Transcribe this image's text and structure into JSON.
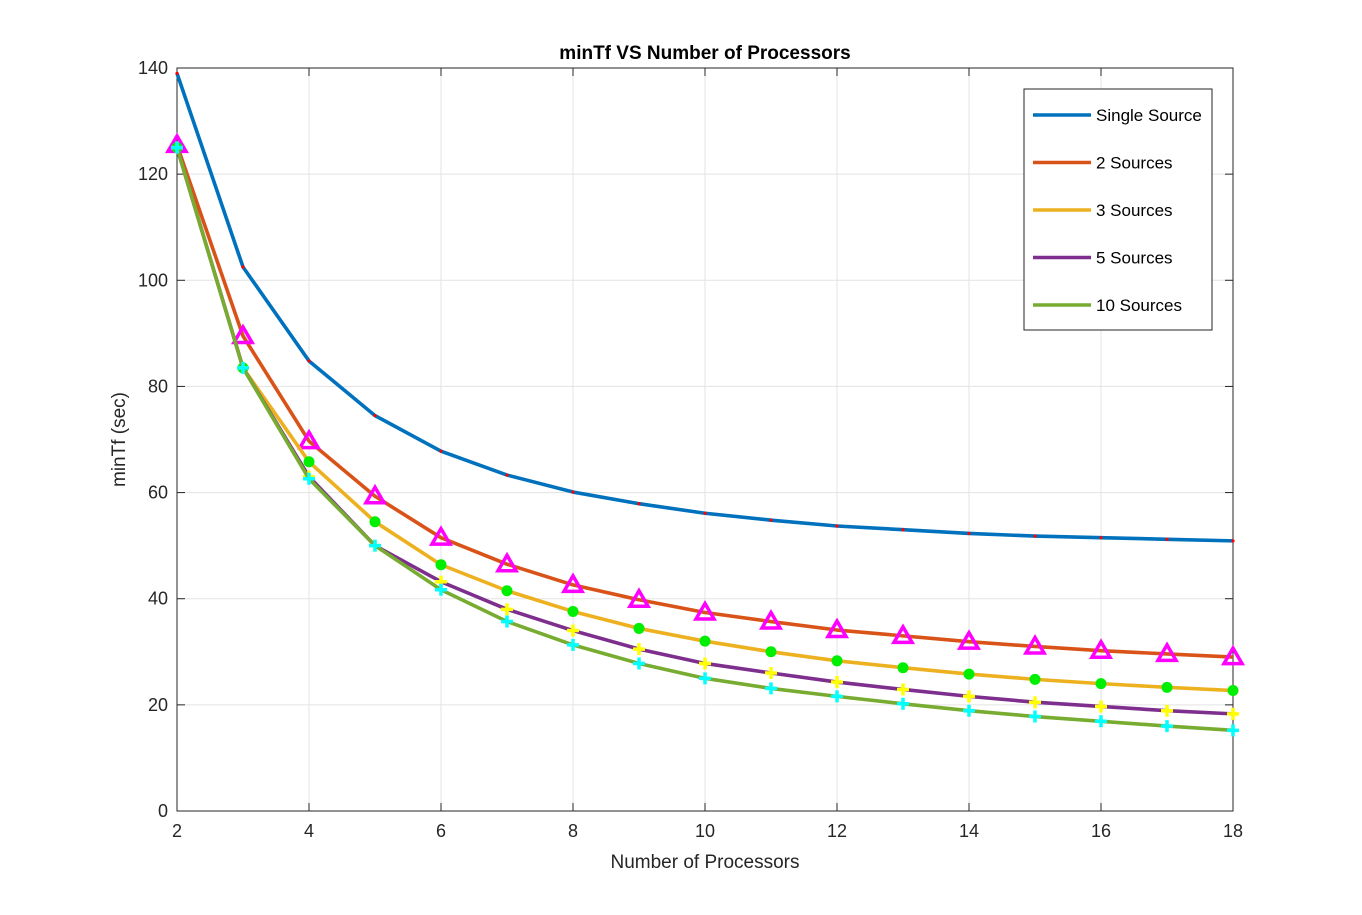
{
  "chart_data": {
    "type": "line",
    "title": "minTf VS Number of Processors",
    "xlabel": "Number of Processors",
    "ylabel": "minTf (sec)",
    "xlim": [
      2,
      18
    ],
    "ylim": [
      0,
      140
    ],
    "xticks": [
      "2",
      "4",
      "6",
      "8",
      "10",
      "12",
      "14",
      "16",
      "18"
    ],
    "yticks": [
      "0",
      "20",
      "40",
      "60",
      "80",
      "100",
      "120",
      "140"
    ],
    "grid": true,
    "legend_position": "top-right",
    "x": [
      2,
      3,
      4,
      5,
      6,
      7,
      8,
      9,
      10,
      11,
      12,
      13,
      14,
      15,
      16,
      17,
      18
    ],
    "series": [
      {
        "name": "Single Source",
        "color": "#0072BD",
        "marker": "dot",
        "marker_color": "#ff0000",
        "values": [
          139,
          102.5,
          84.8,
          74.5,
          67.8,
          63.3,
          60.1,
          57.9,
          56.1,
          54.8,
          53.7,
          53.0,
          52.3,
          51.8,
          51.5,
          51.2,
          50.9
        ]
      },
      {
        "name": "2 Sources",
        "color": "#D95319",
        "marker": "triangle",
        "marker_color": "#ff00ff",
        "values": [
          125.5,
          89.5,
          69.7,
          59.3,
          51.5,
          46.5,
          42.6,
          39.8,
          37.4,
          35.7,
          34.1,
          33.0,
          31.9,
          31.0,
          30.2,
          29.6,
          29.0
        ]
      },
      {
        "name": "3 Sources",
        "color": "#EDB120",
        "marker": "circle",
        "marker_color": "#00ee00",
        "values": [
          125.0,
          83.5,
          65.8,
          54.5,
          46.4,
          41.5,
          37.6,
          34.4,
          32.0,
          30.0,
          28.3,
          27.0,
          25.8,
          24.8,
          24.0,
          23.3,
          22.7
        ]
      },
      {
        "name": "5 Sources",
        "color": "#7E2F8E",
        "marker": "plus",
        "marker_color": "#ffff00",
        "values": [
          125.0,
          83.5,
          63.0,
          50.0,
          43.2,
          38.0,
          34.0,
          30.5,
          27.8,
          26.0,
          24.3,
          22.9,
          21.6,
          20.5,
          19.7,
          18.9,
          18.3
        ]
      },
      {
        "name": "10 Sources",
        "color": "#77AC30",
        "marker": "plus",
        "marker_color": "#00ffff",
        "values": [
          125.0,
          83.5,
          62.6,
          50.0,
          41.7,
          35.7,
          31.3,
          27.8,
          25.0,
          23.1,
          21.6,
          20.2,
          18.9,
          17.8,
          16.9,
          16.0,
          15.2
        ]
      }
    ]
  }
}
